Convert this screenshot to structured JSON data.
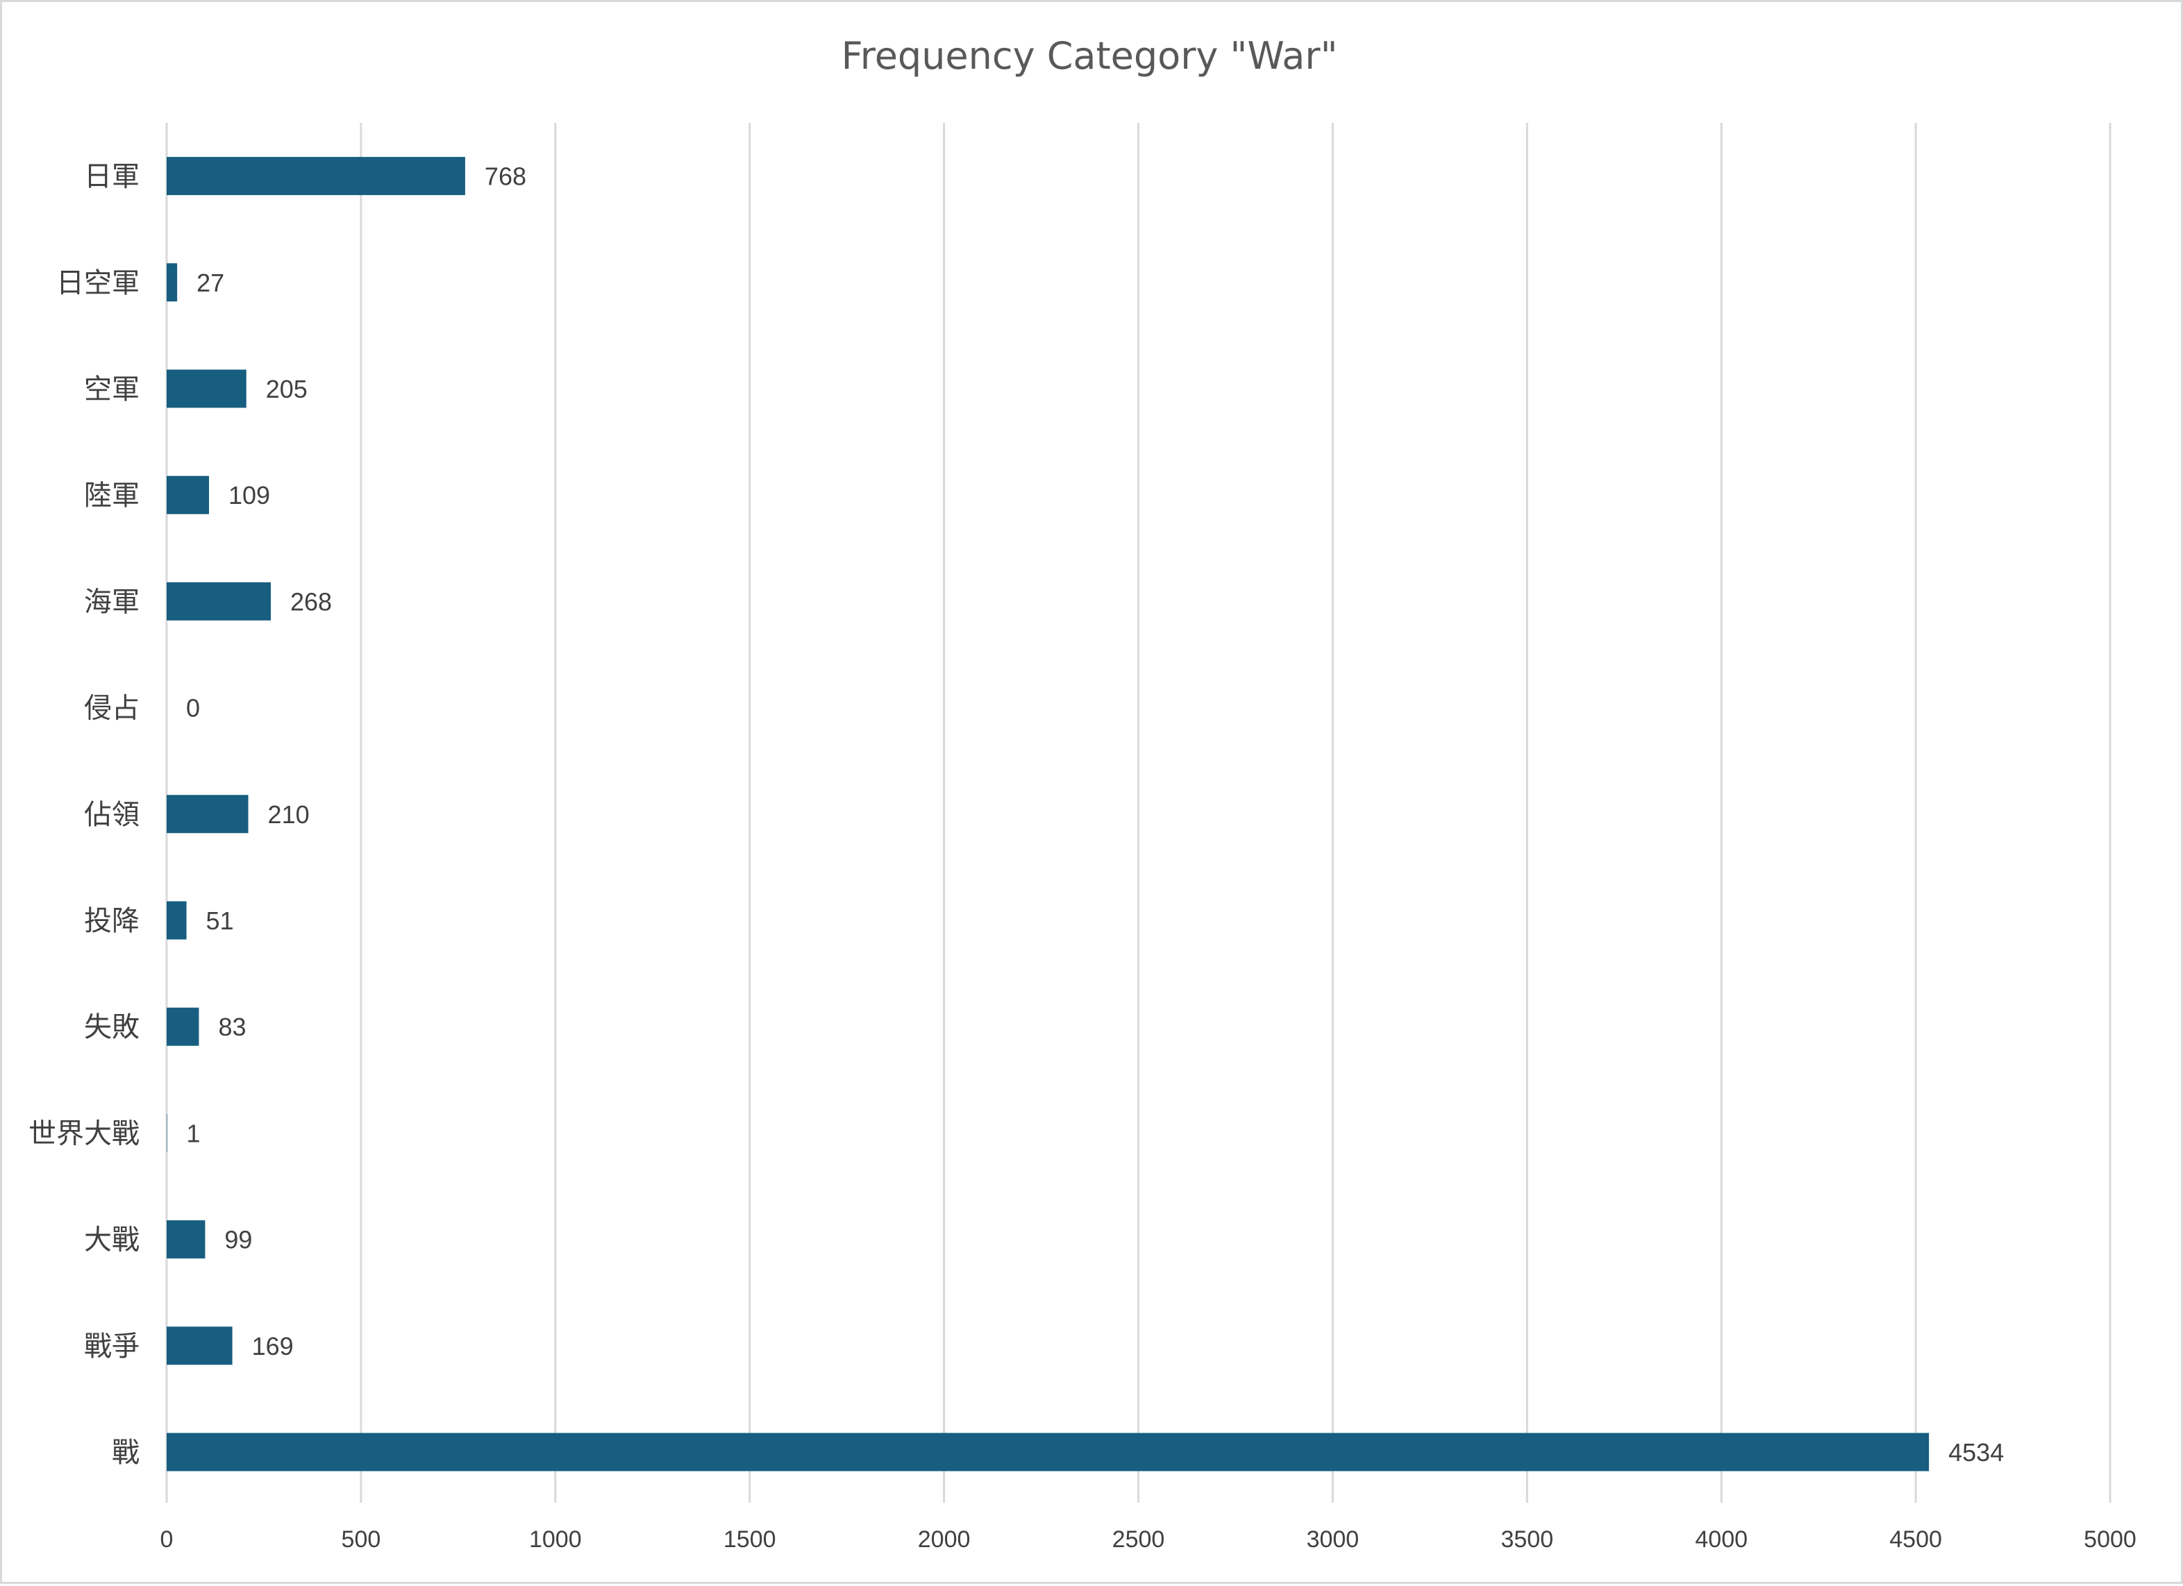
{
  "chart_data": {
    "type": "bar",
    "orientation": "horizontal",
    "title": "Frequency Category \"War\"",
    "xlabel": "",
    "ylabel": "",
    "xlim": [
      0,
      5000
    ],
    "x_ticks": [
      0,
      500,
      1000,
      1500,
      2000,
      2500,
      3000,
      3500,
      4000,
      4500,
      5000
    ],
    "grid": true,
    "legend": "none",
    "bar_color": "#175e80",
    "categories": [
      "日軍",
      "日空軍",
      "空軍",
      "陸軍",
      "海軍",
      "侵占",
      "佔領",
      "投降",
      "失敗",
      "世界大戰",
      "大戰",
      "戰爭",
      "戰"
    ],
    "values": [
      768,
      27,
      205,
      109,
      268,
      0,
      210,
      51,
      83,
      1,
      99,
      169,
      4534
    ],
    "data_labels": [
      "768",
      "27",
      "205",
      "109",
      "268",
      "0",
      "210",
      "51",
      "83",
      "1",
      "99",
      "169",
      "4534"
    ]
  }
}
